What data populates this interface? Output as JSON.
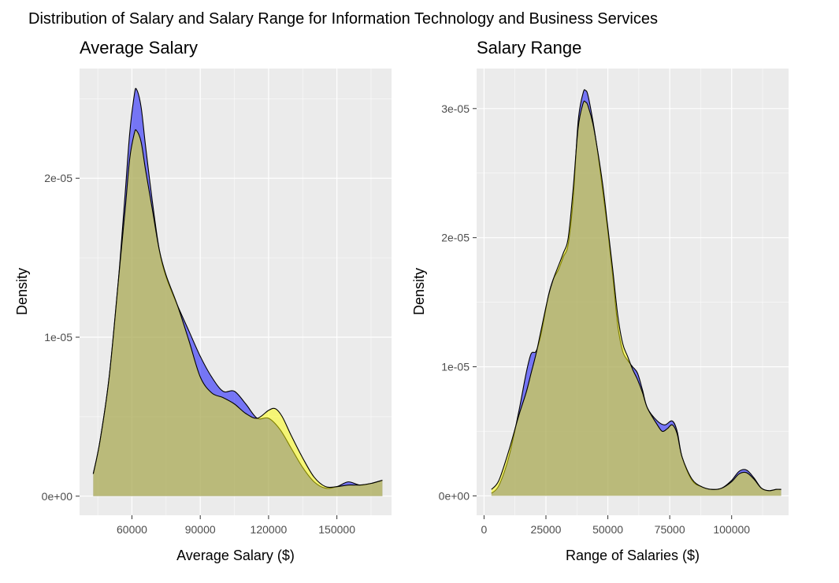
{
  "figure": {
    "title": "Distribution of Salary and Salary Range for Information Technology and Business Services",
    "background": "#ffffff",
    "panel_background": "#ebebeb",
    "grid_color": "#ffffff"
  },
  "chart_data": [
    {
      "type": "area",
      "title": "Average Salary",
      "xlabel": "Average Salary ($)",
      "ylabel": "Density",
      "xlim": [
        37000,
        174000
      ],
      "ylim": [
        -1.2e-06,
        2.69e-05
      ],
      "x_ticks": [
        60000,
        90000,
        120000,
        150000
      ],
      "x_tick_labels": [
        "60000",
        "90000",
        "120000",
        "150000"
      ],
      "y_ticks": [
        0,
        1e-05,
        2e-05
      ],
      "y_tick_labels": [
        "0e+00",
        "1e-05",
        "2e-05"
      ],
      "grid": true,
      "series": [
        {
          "color": "#0000ff",
          "opacity": 0.5,
          "points": [
            [
              43000,
              1.4e-06
            ],
            [
              46000,
              3.5e-06
            ],
            [
              50000,
              7.5e-06
            ],
            [
              54000,
              1.35e-05
            ],
            [
              57000,
              1.9e-05
            ],
            [
              59000,
              2.28e-05
            ],
            [
              61000,
              2.52e-05
            ],
            [
              62000,
              2.56e-05
            ],
            [
              64000,
              2.45e-05
            ],
            [
              66000,
              2.2e-05
            ],
            [
              69000,
              1.85e-05
            ],
            [
              72000,
              1.55e-05
            ],
            [
              75000,
              1.38e-05
            ],
            [
              80000,
              1.2e-05
            ],
            [
              85000,
              1.04e-05
            ],
            [
              90000,
              8.8e-06
            ],
            [
              95000,
              7.5e-06
            ],
            [
              100000,
              6.6e-06
            ],
            [
              105000,
              6.6e-06
            ],
            [
              110000,
              5.8e-06
            ],
            [
              115000,
              4.9e-06
            ],
            [
              120000,
              4.9e-06
            ],
            [
              125000,
              4.2e-06
            ],
            [
              130000,
              3e-06
            ],
            [
              135000,
              1.8e-06
            ],
            [
              140000,
              9e-07
            ],
            [
              145000,
              5e-07
            ],
            [
              150000,
              6e-07
            ],
            [
              155000,
              9e-07
            ],
            [
              160000,
              7e-07
            ],
            [
              165000,
              8e-07
            ],
            [
              170000,
              1e-06
            ]
          ]
        },
        {
          "color": "#ffff00",
          "opacity": 0.5,
          "points": [
            [
              43000,
              1.4e-06
            ],
            [
              46000,
              3.5e-06
            ],
            [
              50000,
              7.5e-06
            ],
            [
              54000,
              1.35e-05
            ],
            [
              57000,
              1.8e-05
            ],
            [
              59000,
              2.12e-05
            ],
            [
              61000,
              2.28e-05
            ],
            [
              62000,
              2.3e-05
            ],
            [
              64000,
              2.23e-05
            ],
            [
              66000,
              2.05e-05
            ],
            [
              69000,
              1.8e-05
            ],
            [
              72000,
              1.55e-05
            ],
            [
              75000,
              1.39e-05
            ],
            [
              80000,
              1.2e-05
            ],
            [
              85000,
              9.8e-06
            ],
            [
              90000,
              7.5e-06
            ],
            [
              95000,
              6.5e-06
            ],
            [
              100000,
              6.2e-06
            ],
            [
              105000,
              5.8e-06
            ],
            [
              110000,
              5.2e-06
            ],
            [
              115000,
              4.9e-06
            ],
            [
              120000,
              5.4e-06
            ],
            [
              123000,
              5.5e-06
            ],
            [
              126000,
              5e-06
            ],
            [
              130000,
              3.8e-06
            ],
            [
              135000,
              2.4e-06
            ],
            [
              140000,
              1.2e-06
            ],
            [
              145000,
              6e-07
            ],
            [
              150000,
              6e-07
            ],
            [
              155000,
              7e-07
            ],
            [
              160000,
              7e-07
            ],
            [
              165000,
              8e-07
            ],
            [
              170000,
              1e-06
            ]
          ]
        }
      ]
    },
    {
      "type": "area",
      "title": "Salary Range",
      "xlabel": "Range of Salaries ($)",
      "ylabel": "Density",
      "xlim": [
        -3000,
        123000
      ],
      "ylim": [
        -1.5e-06,
        3.31e-05
      ],
      "x_ticks": [
        0,
        25000,
        50000,
        75000,
        100000
      ],
      "x_tick_labels": [
        "0",
        "25000",
        "50000",
        "75000",
        "100000"
      ],
      "y_ticks": [
        0,
        1e-05,
        2e-05,
        3e-05
      ],
      "y_tick_labels": [
        "0e+00",
        "1e-05",
        "2e-05",
        "3e-05"
      ],
      "grid": true,
      "series": [
        {
          "color": "#0000ff",
          "opacity": 0.5,
          "points": [
            [
              3000,
              2e-07
            ],
            [
              6000,
              8e-07
            ],
            [
              10000,
              3e-06
            ],
            [
              14000,
              6.5e-06
            ],
            [
              17000,
              9.5e-06
            ],
            [
              19000,
              1.1e-05
            ],
            [
              21000,
              1.12e-05
            ],
            [
              23000,
              1.25e-05
            ],
            [
              26000,
              1.55e-05
            ],
            [
              28000,
              1.68e-05
            ],
            [
              30000,
              1.75e-05
            ],
            [
              32000,
              1.85e-05
            ],
            [
              34000,
              1.95e-05
            ],
            [
              36000,
              2.3e-05
            ],
            [
              38000,
              2.9e-05
            ],
            [
              40000,
              3.12e-05
            ],
            [
              41000,
              3.14e-05
            ],
            [
              42000,
              3.1e-05
            ],
            [
              44000,
              2.9e-05
            ],
            [
              46000,
              2.65e-05
            ],
            [
              48000,
              2.35e-05
            ],
            [
              50000,
              2.05e-05
            ],
            [
              52000,
              1.7e-05
            ],
            [
              54000,
              1.32e-05
            ],
            [
              56000,
              1.12e-05
            ],
            [
              58000,
              1.05e-05
            ],
            [
              60000,
              1e-05
            ],
            [
              62000,
              9.5e-06
            ],
            [
              64000,
              8.2e-06
            ],
            [
              66000,
              6.8e-06
            ],
            [
              70000,
              5.8e-06
            ],
            [
              73000,
              5.5e-06
            ],
            [
              76000,
              5.8e-06
            ],
            [
              78000,
              5e-06
            ],
            [
              80000,
              3e-06
            ],
            [
              84000,
              1.2e-06
            ],
            [
              88000,
              7e-07
            ],
            [
              92000,
              5e-07
            ],
            [
              96000,
              6e-07
            ],
            [
              100000,
              1.2e-06
            ],
            [
              103000,
              1.9e-06
            ],
            [
              106000,
              2e-06
            ],
            [
              109000,
              1.4e-06
            ],
            [
              112000,
              6e-07
            ],
            [
              115000,
              4e-07
            ],
            [
              118000,
              5e-07
            ],
            [
              120000,
              5e-07
            ]
          ]
        },
        {
          "color": "#ffff00",
          "opacity": 0.5,
          "points": [
            [
              3000,
              5e-07
            ],
            [
              6000,
              1.2e-06
            ],
            [
              10000,
              3.5e-06
            ],
            [
              14000,
              6.2e-06
            ],
            [
              17000,
              8e-06
            ],
            [
              19000,
              9.5e-06
            ],
            [
              21000,
              1.1e-05
            ],
            [
              23000,
              1.28e-05
            ],
            [
              26000,
              1.55e-05
            ],
            [
              28000,
              1.68e-05
            ],
            [
              30000,
              1.78e-05
            ],
            [
              32000,
              1.88e-05
            ],
            [
              34000,
              2e-05
            ],
            [
              36000,
              2.38e-05
            ],
            [
              38000,
              2.85e-05
            ],
            [
              40000,
              3.04e-05
            ],
            [
              41000,
              3.05e-05
            ],
            [
              42000,
              3.02e-05
            ],
            [
              44000,
              2.88e-05
            ],
            [
              46000,
              2.66e-05
            ],
            [
              48000,
              2.4e-05
            ],
            [
              50000,
              2.08e-05
            ],
            [
              52000,
              1.75e-05
            ],
            [
              54000,
              1.4e-05
            ],
            [
              56000,
              1.18e-05
            ],
            [
              58000,
              1.08e-05
            ],
            [
              60000,
              9.8e-06
            ],
            [
              62000,
              9e-06
            ],
            [
              64000,
              8e-06
            ],
            [
              66000,
              6.8e-06
            ],
            [
              70000,
              5.5e-06
            ],
            [
              72000,
              5e-06
            ],
            [
              74000,
              5.2e-06
            ],
            [
              76000,
              5.5e-06
            ],
            [
              78000,
              4.8e-06
            ],
            [
              80000,
              3e-06
            ],
            [
              84000,
              1.3e-06
            ],
            [
              88000,
              7e-07
            ],
            [
              92000,
              5e-07
            ],
            [
              96000,
              6e-07
            ],
            [
              100000,
              1.1e-06
            ],
            [
              103000,
              1.7e-06
            ],
            [
              106000,
              1.8e-06
            ],
            [
              109000,
              1.3e-06
            ],
            [
              112000,
              6e-07
            ],
            [
              115000,
              4e-07
            ],
            [
              118000,
              5e-07
            ],
            [
              120000,
              5e-07
            ]
          ]
        }
      ]
    }
  ]
}
